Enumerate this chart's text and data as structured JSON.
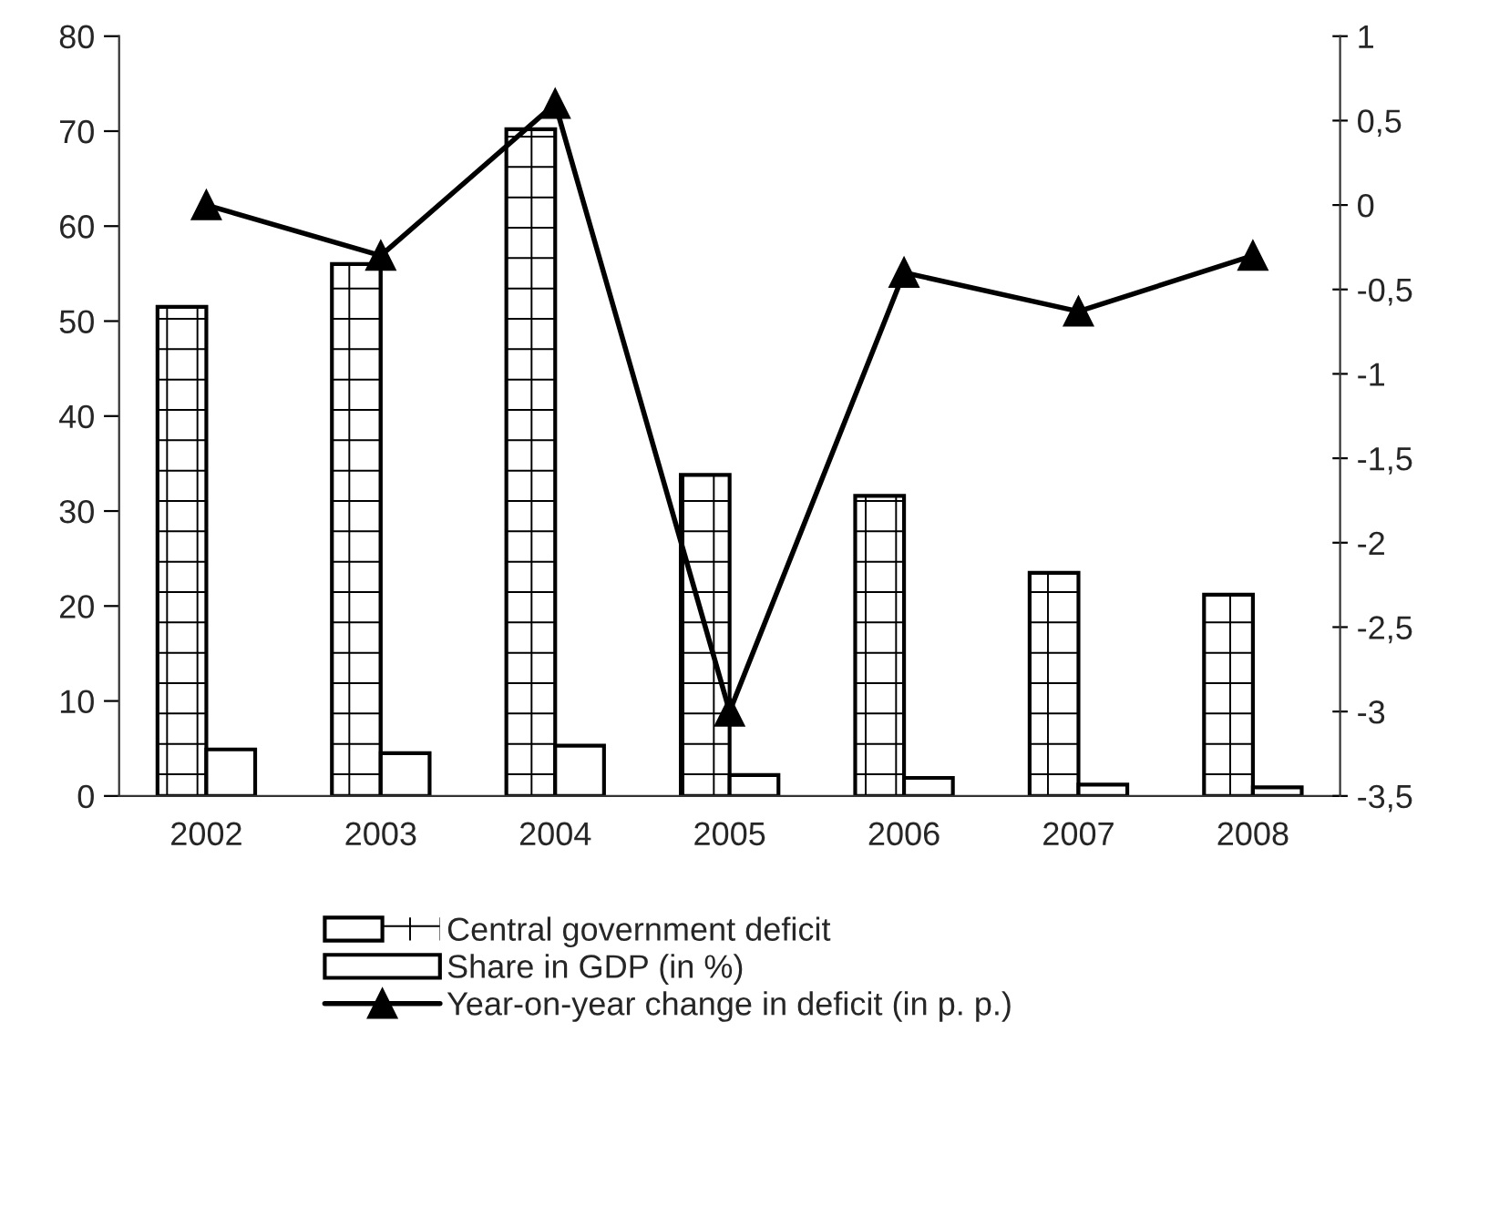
{
  "chart_data": {
    "type": "bar",
    "categories": [
      "2002",
      "2003",
      "2004",
      "2005",
      "2006",
      "2007",
      "2008"
    ],
    "series": [
      {
        "name": "Central government deficit",
        "color": "#ffffff",
        "values": [
          51.5,
          56.0,
          70.2,
          33.8,
          31.6,
          23.5,
          21.2
        ]
      },
      {
        "name": "Share in GDP (in %)",
        "color": "#ffffff",
        "values": [
          4.9,
          4.5,
          5.3,
          2.2,
          1.9,
          1.2,
          0.9
        ]
      },
      {
        "name": "Year-on-year change in deficit (in p. p.)",
        "type": "line",
        "axis": "y2",
        "color": "#000000",
        "marker": "triangle",
        "values": [
          0.0,
          -0.3,
          0.6,
          -3.0,
          -0.4,
          -0.63,
          -0.3
        ]
      }
    ],
    "ylim": [
      0,
      80
    ],
    "yticks": [
      0,
      10,
      20,
      30,
      40,
      50,
      60,
      70,
      80
    ],
    "y2lim": [
      -3.5,
      1
    ],
    "y2ticks": [
      {
        "value": -3.5,
        "label": "-3,5"
      },
      -3,
      {
        "value": -2.5,
        "label": "-2,5"
      },
      -2,
      {
        "value": -1.5,
        "label": "-1,5"
      },
      -1,
      {
        "value": -0.5,
        "label": "-0,5"
      },
      0,
      {
        "value": 0.5,
        "label": "0,5"
      },
      1
    ],
    "grid": false,
    "legend": "bottom"
  }
}
